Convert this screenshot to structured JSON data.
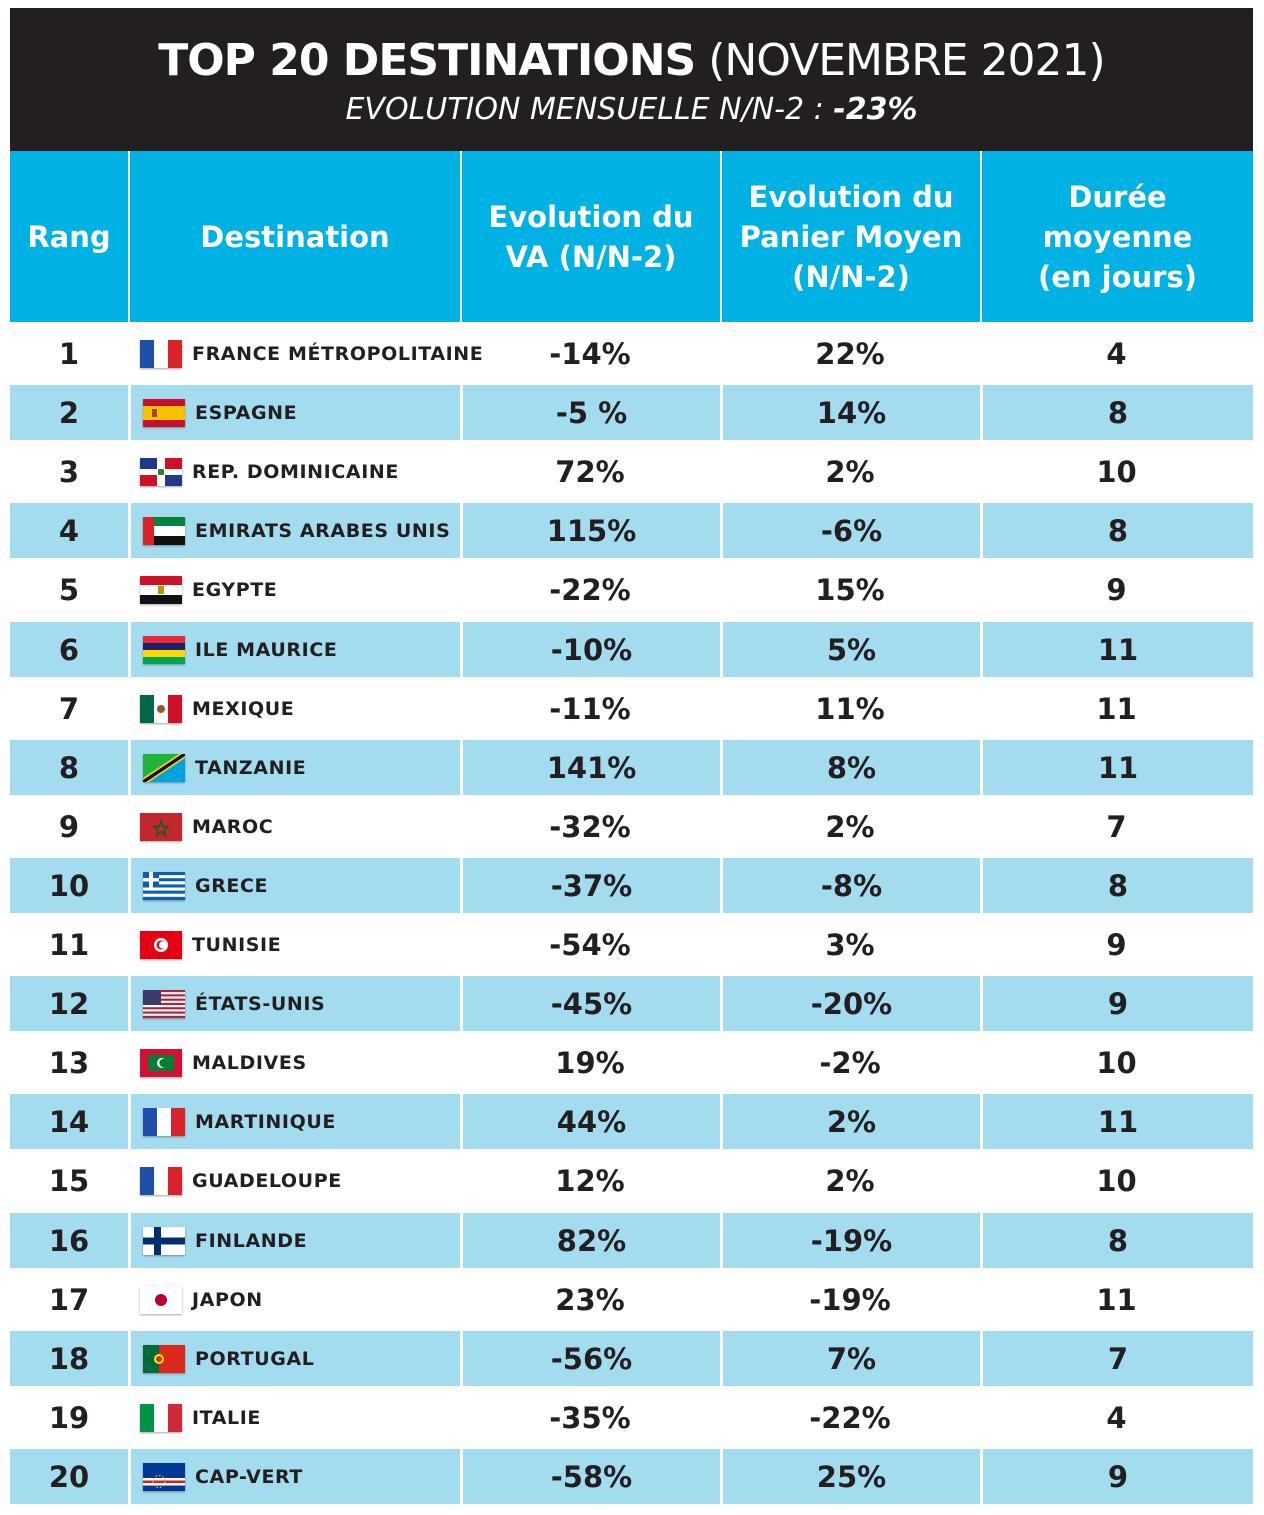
{
  "header": {
    "title_bold": "TOP 20 DESTINATIONS",
    "title_rest": "(NOVEMBRE 2021)",
    "subtitle_label": "EVOLUTION MENSUELLE N/N-2 :",
    "subtitle_value": "-23%"
  },
  "columns": {
    "rang": "Rang",
    "destination": "Destination",
    "va_line1": "Evolution du",
    "va_line2": "VA (N/N-2)",
    "panier_line1": "Evolution du",
    "panier_line2": "Panier Moyen",
    "panier_line3": "(N/N-2)",
    "duree_line1": "Durée",
    "duree_line2": "moyenne",
    "duree_line3": "(en jours)"
  },
  "rows": [
    {
      "rank": "1",
      "destination": "FRANCE MÉTROPOLITAINE",
      "flag": "france-flag-icon",
      "va": "-14%",
      "panier": "22%",
      "duree": "4"
    },
    {
      "rank": "2",
      "destination": "ESPAGNE",
      "flag": "spain-flag-icon",
      "va": "-5 %",
      "panier": "14%",
      "duree": "8"
    },
    {
      "rank": "3",
      "destination": "REP. DOMINICAINE",
      "flag": "dominican-republic-flag-icon",
      "va": "72%",
      "panier": "2%",
      "duree": "10"
    },
    {
      "rank": "4",
      "destination": "EMIRATS ARABES UNIS",
      "flag": "uae-flag-icon",
      "va": "115%",
      "panier": "-6%",
      "duree": "8"
    },
    {
      "rank": "5",
      "destination": "EGYPTE",
      "flag": "egypt-flag-icon",
      "va": "-22%",
      "panier": "15%",
      "duree": "9"
    },
    {
      "rank": "6",
      "destination": "ILE MAURICE",
      "flag": "mauritius-flag-icon",
      "va": "-10%",
      "panier": "5%",
      "duree": "11"
    },
    {
      "rank": "7",
      "destination": "MEXIQUE",
      "flag": "mexico-flag-icon",
      "va": "-11%",
      "panier": "11%",
      "duree": "11"
    },
    {
      "rank": "8",
      "destination": "TANZANIE",
      "flag": "tanzania-flag-icon",
      "va": "141%",
      "panier": "8%",
      "duree": "11"
    },
    {
      "rank": "9",
      "destination": "MAROC",
      "flag": "morocco-flag-icon",
      "va": "-32%",
      "panier": "2%",
      "duree": "7"
    },
    {
      "rank": "10",
      "destination": "GRECE",
      "flag": "greece-flag-icon",
      "va": "-37%",
      "panier": "-8%",
      "duree": "8"
    },
    {
      "rank": "11",
      "destination": "TUNISIE",
      "flag": "tunisia-flag-icon",
      "va": "-54%",
      "panier": "3%",
      "duree": "9"
    },
    {
      "rank": "12",
      "destination": "ÉTATS-UNIS",
      "flag": "usa-flag-icon",
      "va": "-45%",
      "panier": "-20%",
      "duree": "9"
    },
    {
      "rank": "13",
      "destination": "MALDIVES",
      "flag": "maldives-flag-icon",
      "va": "19%",
      "panier": "-2%",
      "duree": "10"
    },
    {
      "rank": "14",
      "destination": "MARTINIQUE",
      "flag": "france-flag-icon",
      "va": "44%",
      "panier": "2%",
      "duree": "11"
    },
    {
      "rank": "15",
      "destination": "GUADELOUPE",
      "flag": "france-flag-icon",
      "va": "12%",
      "panier": "2%",
      "duree": "10"
    },
    {
      "rank": "16",
      "destination": "FINLANDE",
      "flag": "finland-flag-icon",
      "va": "82%",
      "panier": "-19%",
      "duree": "8"
    },
    {
      "rank": "17",
      "destination": "JAPON",
      "flag": "japan-flag-icon",
      "va": "23%",
      "panier": "-19%",
      "duree": "11"
    },
    {
      "rank": "18",
      "destination": "PORTUGAL",
      "flag": "portugal-flag-icon",
      "va": "-56%",
      "panier": "7%",
      "duree": "7"
    },
    {
      "rank": "19",
      "destination": "ITALIE",
      "flag": "italy-flag-icon",
      "va": "-35%",
      "panier": "-22%",
      "duree": "4"
    },
    {
      "rank": "20",
      "destination": "CAP-VERT",
      "flag": "cape-verde-flag-icon",
      "va": "-58%",
      "panier": "25%",
      "duree": "9"
    }
  ]
}
